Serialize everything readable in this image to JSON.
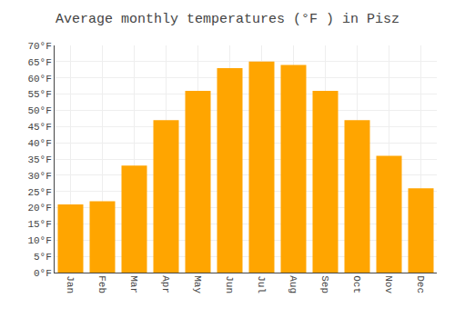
{
  "chart_data": {
    "type": "bar",
    "title": "Average monthly temperatures (°F ) in Pisz",
    "categories": [
      "Jan",
      "Feb",
      "Mar",
      "Apr",
      "May",
      "Jun",
      "Jul",
      "Aug",
      "Sep",
      "Oct",
      "Nov",
      "Dec"
    ],
    "values": [
      21,
      22,
      33,
      47,
      56,
      63,
      65,
      64,
      56,
      47,
      36,
      26
    ],
    "color": "#FFA500",
    "ylim": [
      0,
      70
    ],
    "yticks": [
      {
        "value": 0,
        "label": "0°F"
      },
      {
        "value": 5,
        "label": "5°F"
      },
      {
        "value": 10,
        "label": "10°F"
      },
      {
        "value": 15,
        "label": "15°F"
      },
      {
        "value": 20,
        "label": "20°F"
      },
      {
        "value": 25,
        "label": "25°F"
      },
      {
        "value": 30,
        "label": "30°F"
      },
      {
        "value": 35,
        "label": "35°F"
      },
      {
        "value": 40,
        "label": "40°F"
      },
      {
        "value": 45,
        "label": "45°F"
      },
      {
        "value": 50,
        "label": "50°F"
      },
      {
        "value": 55,
        "label": "55°F"
      },
      {
        "value": 60,
        "label": "60°F"
      },
      {
        "value": 65,
        "label": "65°F"
      },
      {
        "value": 70,
        "label": "70°F"
      }
    ],
    "grid": true
  }
}
